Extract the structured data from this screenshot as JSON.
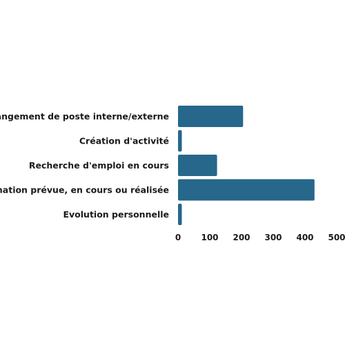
{
  "chart_data": {
    "type": "bar",
    "orientation": "horizontal",
    "categories": [
      "Changement de poste interne/externe",
      "Création d'activité",
      "Recherche d'emploi en cours",
      "Formation prévue, en cours ou réalisée",
      "Evolution personnelle"
    ],
    "values": [
      205,
      12,
      123,
      430,
      12
    ],
    "xlim": [
      0,
      500
    ],
    "xticks": [
      0,
      100,
      200,
      300,
      400,
      500
    ],
    "title": "",
    "xlabel": "",
    "ylabel": "",
    "grid": false,
    "legend": "none",
    "bar_color": "#26678b"
  }
}
